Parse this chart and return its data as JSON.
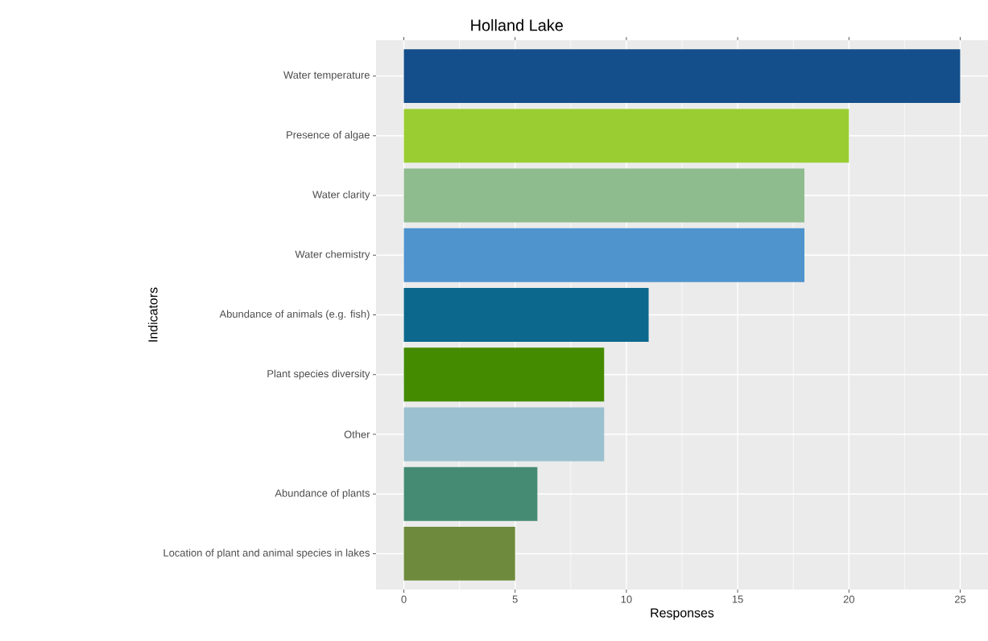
{
  "chart_data": {
    "type": "bar",
    "orientation": "horizontal",
    "title": "Holland Lake",
    "xlabel": "Responses",
    "ylabel": "Indicators",
    "categories": [
      "Water temperature",
      "Presence of algae",
      "Water clarity",
      "Water chemistry",
      "Abundance of animals (e.g. fish)",
      "Plant species diversity",
      "Other",
      "Abundance of plants",
      "Location of plant and animal species in lakes"
    ],
    "values": [
      25,
      20,
      18,
      18,
      11,
      9,
      9,
      6,
      5
    ],
    "colors": [
      "#154f8b",
      "#9acd32",
      "#8fbc8f",
      "#4f94cd",
      "#0c688c",
      "#458b00",
      "#9bc0cf",
      "#458b74",
      "#6e8b3d"
    ],
    "xlim": [
      -1.25,
      26.25
    ],
    "xticks": [
      0,
      5,
      10,
      15,
      20,
      25
    ],
    "grid": true
  }
}
